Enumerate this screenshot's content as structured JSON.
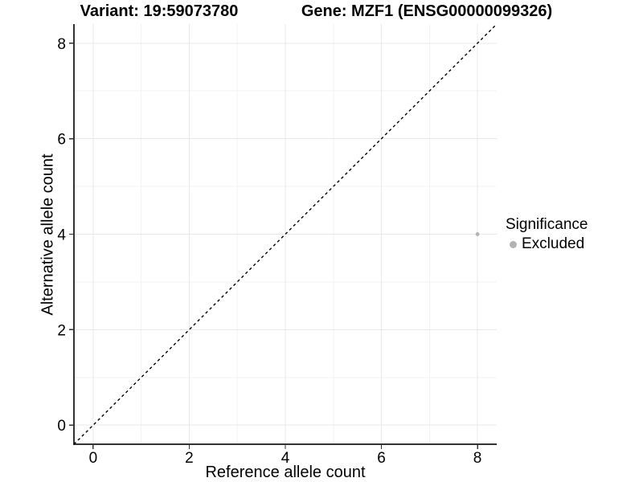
{
  "titles": {
    "variant": "Variant: 19:59073780",
    "gene": "Gene: MZF1 (ENSG00000099326)"
  },
  "axes": {
    "x_label": "Reference allele count",
    "y_label": "Alternative allele count"
  },
  "legend": {
    "title": "Significance",
    "entries": [
      {
        "label": "Excluded",
        "color": "#b3b3b3"
      }
    ]
  },
  "colors": {
    "background": "#ffffff",
    "axis_line": "#333333",
    "tick": "#333333",
    "tick_label": "#000000",
    "grid_major": "#e8e8e8",
    "grid_minor": "#f3f3f3",
    "reference_line": "#000000",
    "point_excluded": "#b3b3b3"
  },
  "chart_data": {
    "type": "scatter",
    "title": "Variant: 19:59073780   Gene: MZF1 (ENSG00000099326)",
    "xlabel": "Reference allele count",
    "ylabel": "Alternative allele count",
    "xlim": [
      -0.4,
      8.4
    ],
    "ylim": [
      -0.4,
      8.4
    ],
    "x_ticks": [
      0,
      2,
      4,
      6,
      8
    ],
    "y_ticks": [
      0,
      2,
      4,
      6,
      8
    ],
    "x_minor": [
      1,
      3,
      5,
      7
    ],
    "y_minor": [
      1,
      3,
      5,
      7
    ],
    "grid": "major and minor gridlines on white panel",
    "legend_position": "right",
    "series": [
      {
        "name": "Excluded",
        "type": "scatter",
        "color": "#b3b3b3",
        "points": [
          {
            "x": 8,
            "y": 4
          }
        ]
      }
    ],
    "reference_line": {
      "equation": "y = x",
      "style": "dashed",
      "color": "#000000",
      "from": [
        -0.4,
        -0.4
      ],
      "to": [
        8.4,
        8.4
      ]
    }
  }
}
